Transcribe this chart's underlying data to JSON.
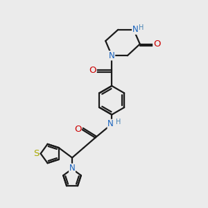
{
  "bg_color": "#ebebeb",
  "bond_color": "#1a1a1a",
  "bond_width": 1.6,
  "atom_colors": {
    "N": "#1560bd",
    "NH": "#1560bd",
    "O": "#cc0000",
    "S": "#aaaa00",
    "H_label": "#4682B4",
    "C": "#1a1a1a"
  },
  "font_size": 8.5,
  "figsize": [
    3.0,
    3.0
  ],
  "dpi": 100
}
